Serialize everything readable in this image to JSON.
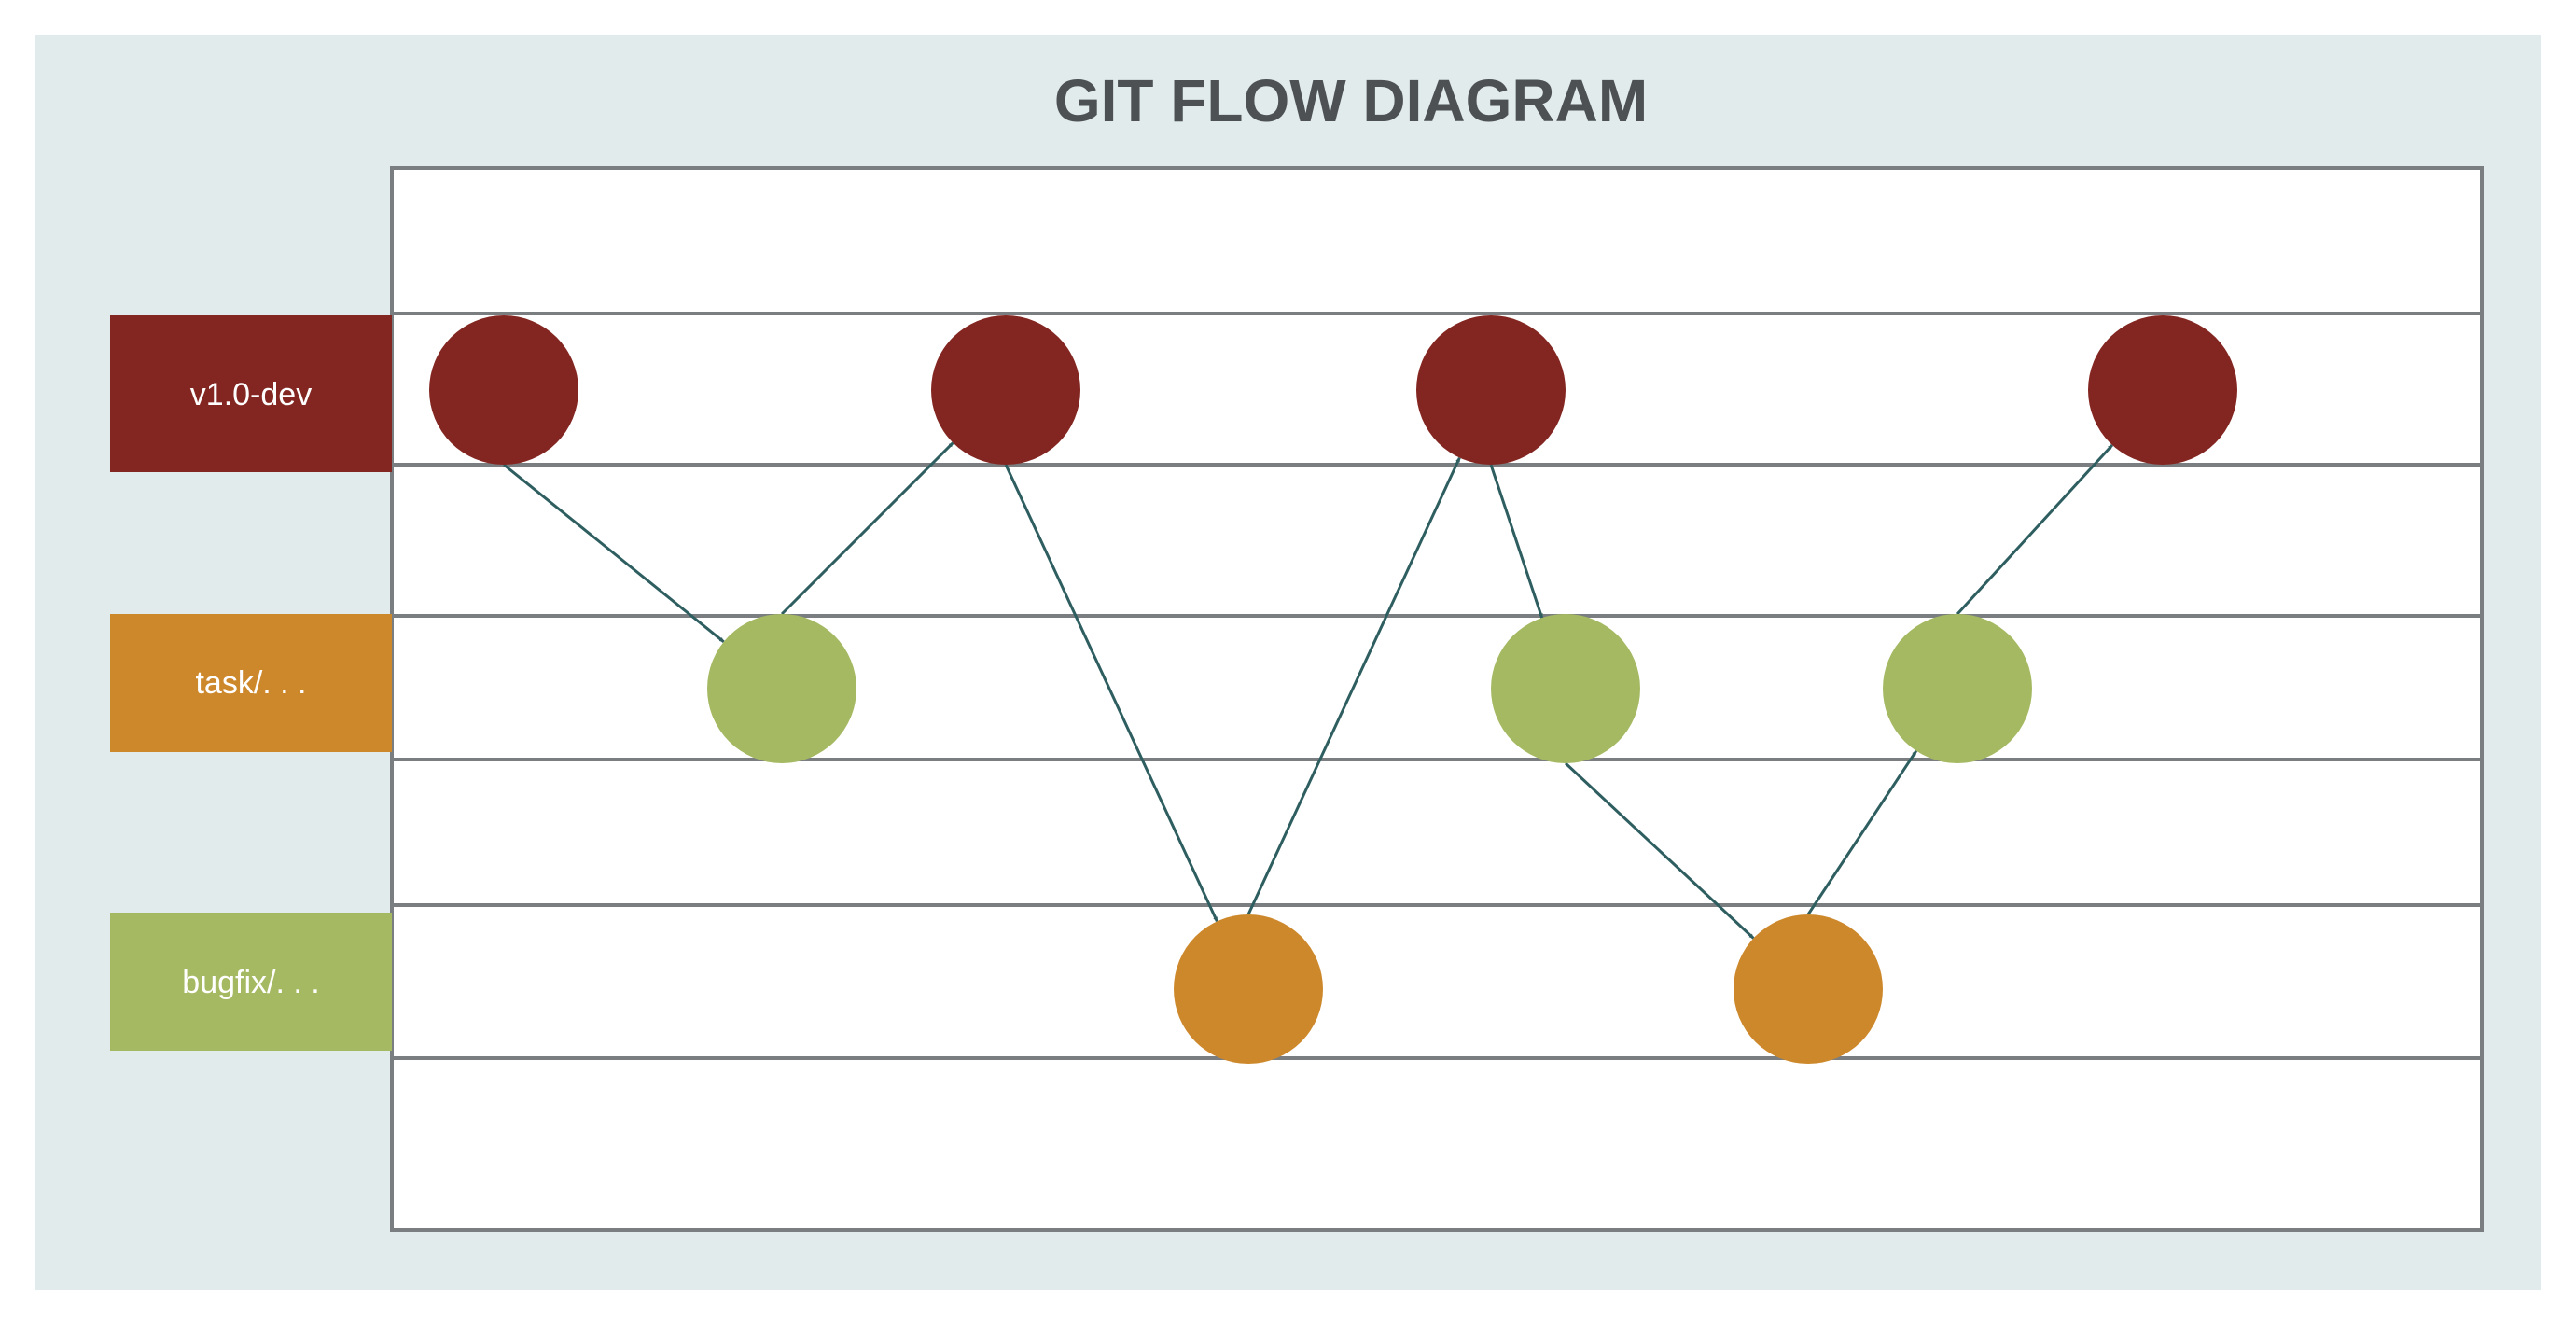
{
  "title": "GIT FLOW DIAGRAM",
  "colors": {
    "background_panel": "#e1ebec",
    "grid_line": "#7b7e80",
    "arrow": "#2e5e60",
    "dev": "#832621",
    "task": "#a5b962",
    "bugfix": "#cd882b"
  },
  "lanes": [
    {
      "id": "dev",
      "label": "v1.0-dev",
      "label_color": "#832621",
      "node_color": "#832621"
    },
    {
      "id": "task",
      "label": "task/. . .",
      "label_color": "#cd882b",
      "node_color": "#a5b962"
    },
    {
      "id": "bugfix",
      "label": "bugfix/. . .",
      "label_color": "#a5b962",
      "node_color": "#cd882b"
    }
  ],
  "nodes": [
    {
      "id": "d1",
      "lane": "dev"
    },
    {
      "id": "t1",
      "lane": "task"
    },
    {
      "id": "d2",
      "lane": "dev"
    },
    {
      "id": "b1",
      "lane": "bugfix"
    },
    {
      "id": "d3",
      "lane": "dev"
    },
    {
      "id": "t2",
      "lane": "task"
    },
    {
      "id": "b2",
      "lane": "bugfix"
    },
    {
      "id": "t3",
      "lane": "task"
    },
    {
      "id": "d4",
      "lane": "dev"
    }
  ],
  "edges": [
    {
      "from": "d1",
      "to": "t1"
    },
    {
      "from": "t1",
      "to": "d2"
    },
    {
      "from": "d2",
      "to": "b1"
    },
    {
      "from": "b1",
      "to": "d3"
    },
    {
      "from": "d3",
      "to": "t2"
    },
    {
      "from": "t2",
      "to": "b2"
    },
    {
      "from": "b2",
      "to": "t3"
    },
    {
      "from": "t3",
      "to": "d4"
    }
  ]
}
